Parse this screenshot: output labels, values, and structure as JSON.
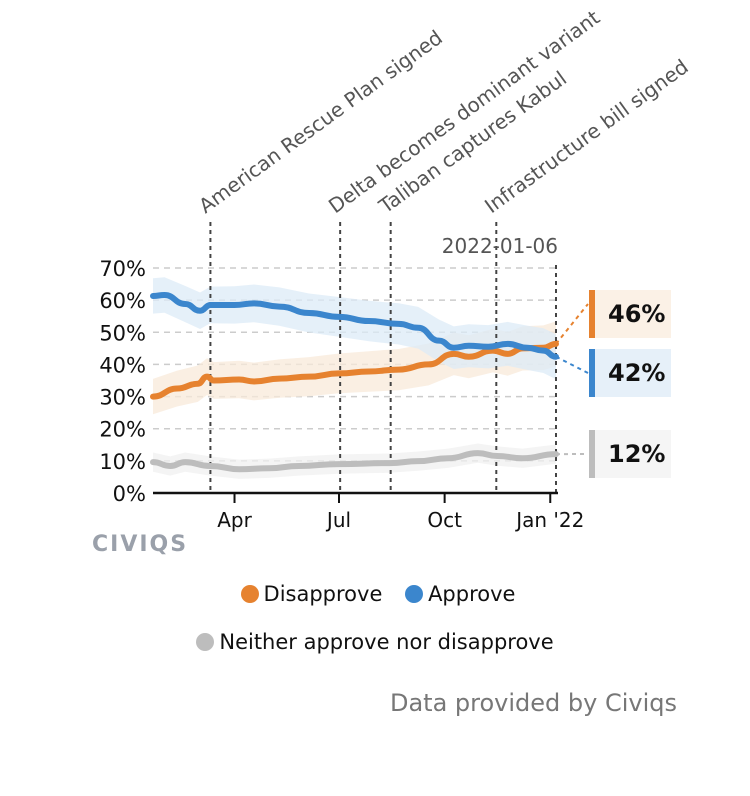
{
  "chart_data": {
    "type": "line",
    "title": "",
    "xlabel": "",
    "ylabel": "",
    "ylim": [
      0,
      70
    ],
    "y_ticks": [
      "0%",
      "10%",
      "20%",
      "30%",
      "40%",
      "50%",
      "60%",
      "70%"
    ],
    "y_tick_values": [
      0,
      10,
      20,
      30,
      40,
      50,
      60,
      70
    ],
    "x_range": [
      "2021-01-20",
      "2022-01-06"
    ],
    "x_ticks": [
      {
        "label": "Apr",
        "date": "2021-04-01"
      },
      {
        "label": "Jul",
        "date": "2021-07-01"
      },
      {
        "label": "Oct",
        "date": "2021-10-01"
      },
      {
        "label": "Jan '22",
        "date": "2022-01-01"
      }
    ],
    "grid": true,
    "current_date_label": "2022-01-06",
    "annotations": [
      {
        "label": "American Rescue Plan signed",
        "date": "2021-03-11"
      },
      {
        "label": "Delta becomes dominant variant",
        "date": "2021-07-02"
      },
      {
        "label": "Taliban captures Kabul",
        "date": "2021-08-15"
      },
      {
        "label": "Infrastructure bill signed",
        "date": "2021-11-15"
      }
    ],
    "series": [
      {
        "name": "Disapprove",
        "color": "#e6822f",
        "band_color": "#f8ead9",
        "end_label": "46%",
        "points": [
          [
            "2021-01-20",
            30.0
          ],
          [
            "2021-02-10",
            32.5
          ],
          [
            "2021-02-28",
            34.0
          ],
          [
            "2021-03-08",
            36.2
          ],
          [
            "2021-03-14",
            35.0
          ],
          [
            "2021-04-05",
            35.3
          ],
          [
            "2021-04-18",
            34.7
          ],
          [
            "2021-05-10",
            35.6
          ],
          [
            "2021-06-05",
            36.2
          ],
          [
            "2021-07-01",
            37.2
          ],
          [
            "2021-07-27",
            37.8
          ],
          [
            "2021-08-22",
            38.4
          ],
          [
            "2021-09-17",
            40.0
          ],
          [
            "2021-10-09",
            43.3
          ],
          [
            "2021-10-22",
            42.4
          ],
          [
            "2021-11-12",
            44.3
          ],
          [
            "2021-11-25",
            43.3
          ],
          [
            "2021-12-08",
            45.0
          ],
          [
            "2021-12-26",
            45.2
          ],
          [
            "2022-01-06",
            46.4
          ]
        ]
      },
      {
        "name": "Approve",
        "color": "#3b86cd",
        "band_color": "#dcebf7",
        "end_label": "42%",
        "points": [
          [
            "2021-01-20",
            61.3
          ],
          [
            "2021-01-30",
            61.6
          ],
          [
            "2021-02-17",
            58.8
          ],
          [
            "2021-03-02",
            56.7
          ],
          [
            "2021-03-11",
            58.5
          ],
          [
            "2021-04-01",
            58.5
          ],
          [
            "2021-04-18",
            59.0
          ],
          [
            "2021-05-10",
            58.0
          ],
          [
            "2021-06-05",
            56.0
          ],
          [
            "2021-07-01",
            54.8
          ],
          [
            "2021-07-27",
            53.5
          ],
          [
            "2021-08-22",
            52.6
          ],
          [
            "2021-09-08",
            51.4
          ],
          [
            "2021-09-26",
            47.4
          ],
          [
            "2021-10-09",
            45.2
          ],
          [
            "2021-10-22",
            45.8
          ],
          [
            "2021-11-08",
            45.5
          ],
          [
            "2021-11-25",
            46.4
          ],
          [
            "2021-12-12",
            45.2
          ],
          [
            "2021-12-26",
            44.3
          ],
          [
            "2022-01-06",
            42.4
          ]
        ]
      },
      {
        "name": "Neither approve nor disapprove",
        "color": "#bdbdbd",
        "band_color": "#f0f0f0",
        "end_label": "12%",
        "points": [
          [
            "2021-01-20",
            9.6
          ],
          [
            "2021-02-04",
            8.4
          ],
          [
            "2021-02-17",
            9.6
          ],
          [
            "2021-03-11",
            8.4
          ],
          [
            "2021-04-05",
            7.4
          ],
          [
            "2021-05-01",
            7.7
          ],
          [
            "2021-05-27",
            8.4
          ],
          [
            "2021-07-01",
            9.0
          ],
          [
            "2021-08-14",
            9.3
          ],
          [
            "2021-09-08",
            9.9
          ],
          [
            "2021-10-04",
            10.8
          ],
          [
            "2021-10-30",
            12.4
          ],
          [
            "2021-11-16",
            11.5
          ],
          [
            "2021-12-08",
            10.8
          ],
          [
            "2022-01-06",
            12.1
          ]
        ]
      }
    ],
    "legend": {
      "placement": "bottom-center",
      "entries": [
        "Disapprove",
        "Approve",
        "Neither approve nor disapprove"
      ]
    }
  },
  "brand": "CIVIQS",
  "source": "Data provided by Civiqs"
}
